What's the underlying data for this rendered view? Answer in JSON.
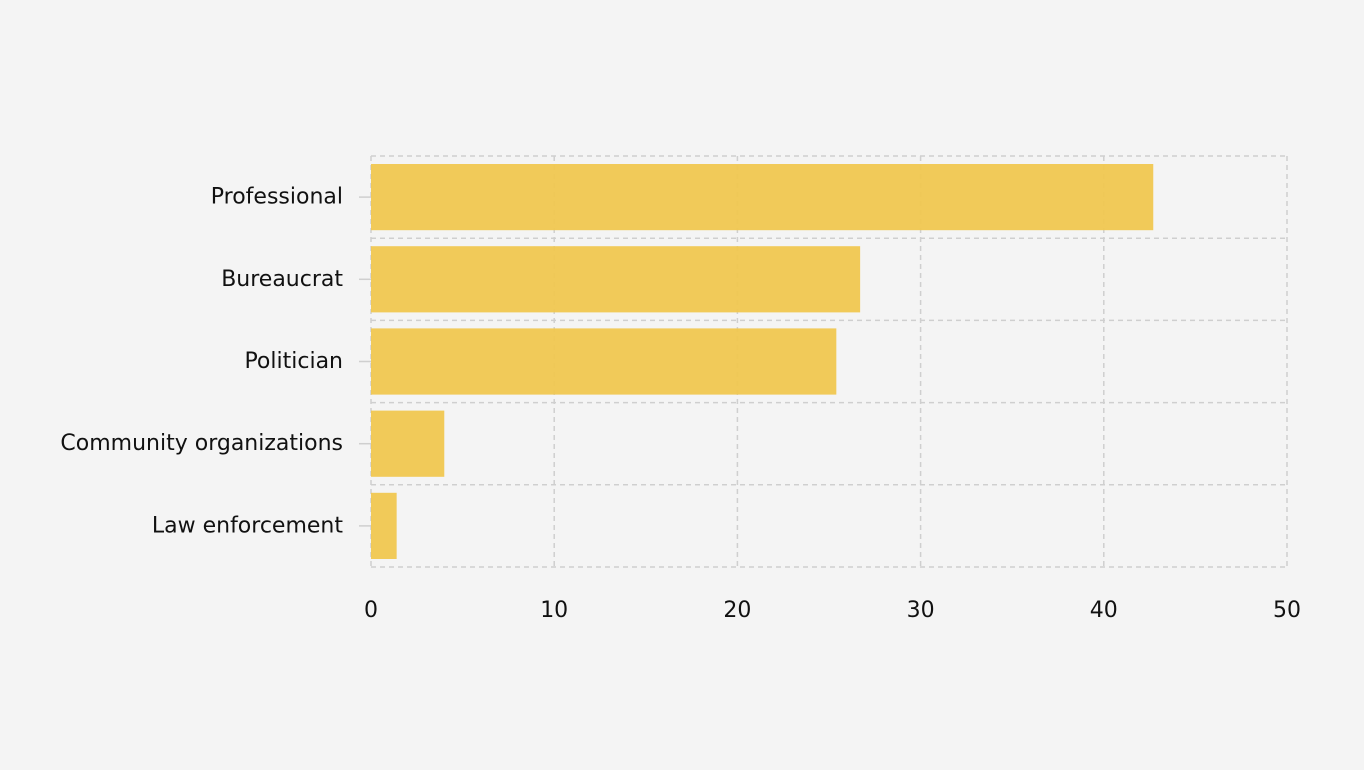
{
  "chart_data": {
    "type": "bar",
    "orientation": "horizontal",
    "title": "",
    "xlabel": "",
    "ylabel": "",
    "categories": [
      "Professional",
      "Bureaucrat",
      "Politician",
      "Community organizations",
      "Law enforcement"
    ],
    "values": [
      42.7,
      26.7,
      25.4,
      4.0,
      1.4
    ],
    "xlim": [
      0,
      50
    ],
    "xticks": [
      0,
      10,
      20,
      30,
      40,
      50
    ],
    "grid": true,
    "bar_color": "#f0c750"
  },
  "colors": {
    "background": "#f4f4f4",
    "grid": "#cfcfcf",
    "bar": "#f0c750",
    "text": "#111111"
  }
}
